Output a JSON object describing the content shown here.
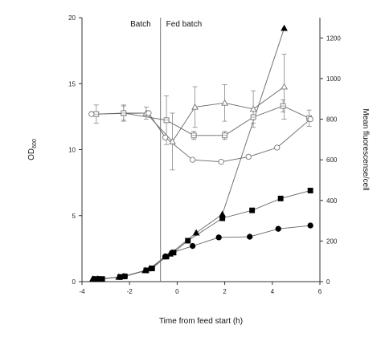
{
  "chart_data": {
    "type": "scatter",
    "xlabel": "Time from feed start (h)",
    "ylabel_left": "OD",
    "ylabel_left_sub": "600",
    "ylabel_right": "Mean fluorescense/cell",
    "xlim": [
      -4,
      6
    ],
    "ylim_left": [
      0,
      20
    ],
    "ylim_right": [
      0,
      1300
    ],
    "x_ticks": [
      -4,
      -2,
      0,
      2,
      4,
      6
    ],
    "y_left_ticks": [
      0,
      5,
      10,
      15,
      20
    ],
    "y_right_ticks": [
      0,
      200,
      400,
      600,
      800,
      1000,
      1200
    ],
    "phase_divider_x": -0.7,
    "phase_labels": [
      "Batch",
      "Fed batch"
    ],
    "grid": false,
    "series": [
      {
        "axis": "left",
        "marker": "triangle-filled",
        "x": [
          -3.55,
          -3.35,
          -2.45,
          -2.25,
          -1.35,
          -1.15,
          -0.5,
          -0.3,
          0.8,
          1.9,
          4.5
        ],
        "y": [
          0.2,
          0.2,
          0.35,
          0.4,
          0.85,
          1.0,
          1.9,
          2.1,
          3.7,
          5.1,
          19.2
        ]
      },
      {
        "axis": "left",
        "marker": "square-filled",
        "x": [
          -3.35,
          -3.15,
          -2.4,
          -2.2,
          -1.3,
          -1.05,
          -0.45,
          -0.15,
          0.45,
          1.9,
          3.15,
          4.35,
          5.6
        ],
        "y": [
          0.2,
          0.2,
          0.35,
          0.4,
          0.85,
          1.0,
          1.9,
          2.2,
          3.1,
          4.8,
          5.4,
          6.3,
          6.9
        ]
      },
      {
        "axis": "left",
        "marker": "circle-filled",
        "x": [
          -3.5,
          -3.3,
          -2.4,
          -2.2,
          -1.3,
          -1.1,
          -0.5,
          -0.2,
          0.65,
          1.75,
          3.05,
          4.25,
          5.6
        ],
        "y": [
          0.2,
          0.2,
          0.35,
          0.4,
          0.85,
          1.0,
          1.9,
          2.2,
          2.7,
          3.35,
          3.4,
          4.0,
          4.25
        ]
      },
      {
        "axis": "right",
        "marker": "triangle-open",
        "x": [
          -2.25,
          -1.3,
          -0.2,
          0.75,
          2.0,
          3.2,
          4.5
        ],
        "y": [
          830,
          830,
          690,
          860,
          880,
          850,
          960
        ],
        "err": [
          35,
          30,
          140,
          100,
          90,
          90,
          160
        ]
      },
      {
        "axis": "right",
        "marker": "square-open",
        "x": [
          -3.4,
          -2.25,
          -0.45,
          0.7,
          2.0,
          3.2,
          4.45,
          5.55
        ],
        "y": [
          825,
          830,
          795,
          720,
          720,
          810,
          865,
          805
        ],
        "err": [
          45,
          40,
          120,
          20,
          20,
          30,
          30,
          40
        ]
      },
      {
        "axis": "right",
        "marker": "circle-open",
        "x": [
          -3.6,
          -1.2,
          -0.5,
          0.65,
          1.85,
          3.0,
          4.2,
          5.6
        ],
        "y": [
          825,
          830,
          710,
          600,
          590,
          615,
          660,
          800
        ]
      }
    ]
  }
}
